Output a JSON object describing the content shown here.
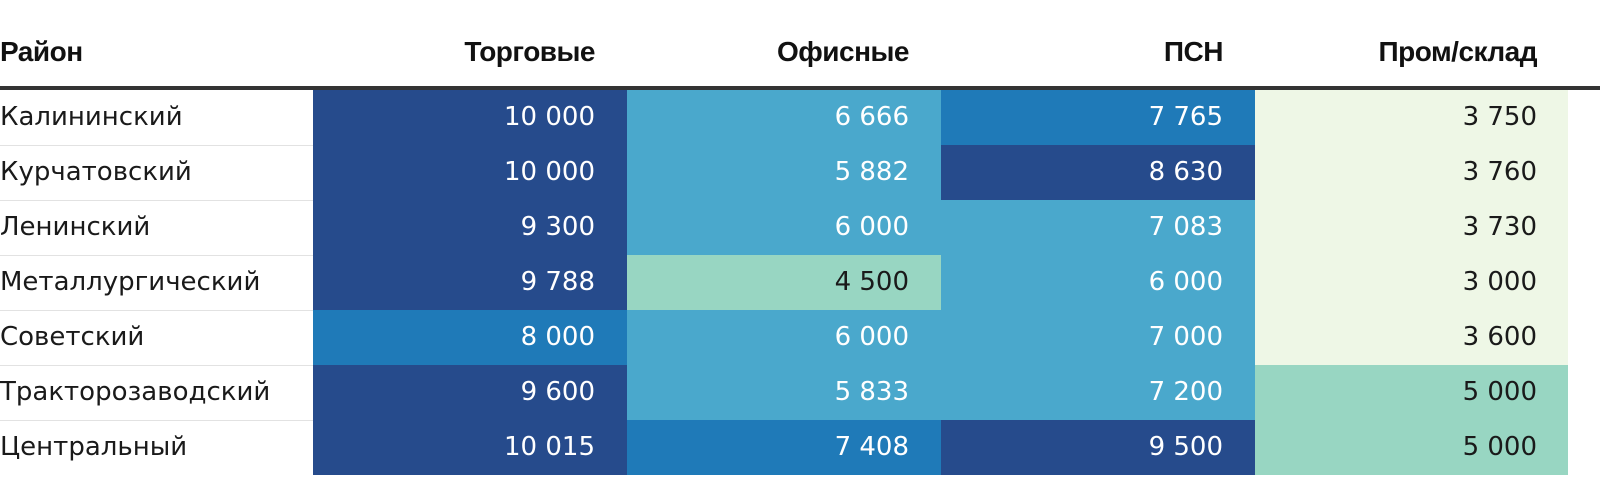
{
  "chart_data": {
    "type": "heatmap",
    "row_header": "Район",
    "columns": [
      "Торговые",
      "Офисные",
      "ПСН",
      "Пром/склад"
    ],
    "rows": [
      {
        "name": "Калининский",
        "values": [
          "10 000",
          "6 666",
          "7 765",
          "3 750"
        ],
        "colors": [
          "#264b8c",
          "#4aa8cc",
          "#1f7ab8",
          "#eef7e6"
        ]
      },
      {
        "name": "Курчатовский",
        "values": [
          "10 000",
          "5 882",
          "8 630",
          "3 760"
        ],
        "colors": [
          "#264b8c",
          "#4aa8cc",
          "#264b8c",
          "#eef7e6"
        ]
      },
      {
        "name": "Ленинский",
        "values": [
          "9 300",
          "6 000",
          "7 083",
          "3 730"
        ],
        "colors": [
          "#264b8c",
          "#4aa8cc",
          "#4aa8cc",
          "#eef7e6"
        ]
      },
      {
        "name": "Металлургический",
        "values": [
          "9 788",
          "4 500",
          "6 000",
          "3 000"
        ],
        "colors": [
          "#264b8c",
          "#98d6c2",
          "#4aa8cc",
          "#eef7e6"
        ]
      },
      {
        "name": "Советский",
        "values": [
          "8 000",
          "6 000",
          "7 000",
          "3 600"
        ],
        "colors": [
          "#1f7ab8",
          "#4aa8cc",
          "#4aa8cc",
          "#eef7e6"
        ]
      },
      {
        "name": "Тракторозаводский",
        "values": [
          "9 600",
          "5 833",
          "7 200",
          "5 000"
        ],
        "colors": [
          "#264b8c",
          "#4aa8cc",
          "#4aa8cc",
          "#98d6c2"
        ]
      },
      {
        "name": "Центральный",
        "values": [
          "10 015",
          "7 408",
          "9 500",
          "5 000"
        ],
        "colors": [
          "#264b8c",
          "#1f7ab8",
          "#264b8c",
          "#98d6c2"
        ]
      }
    ],
    "light_text_colors": [
      "#264b8c",
      "#1f7ab8",
      "#4aa8cc"
    ]
  }
}
